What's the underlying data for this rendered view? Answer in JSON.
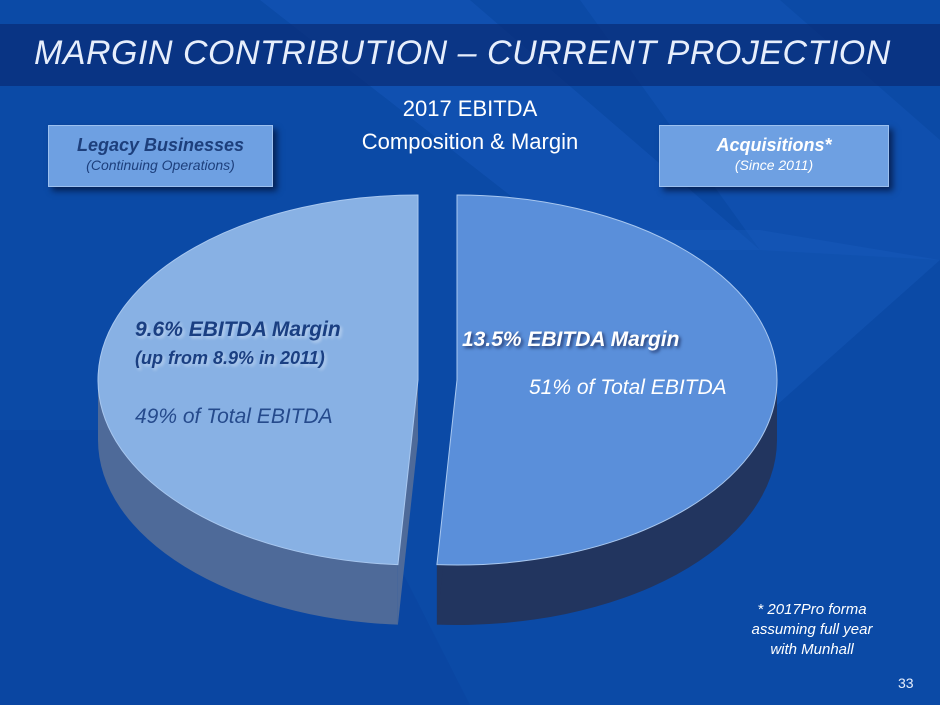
{
  "slide": {
    "title": "MARGIN CONTRIBUTION – CURRENT PROJECTION",
    "page_number": "33",
    "footnote_lines": [
      "* 2017Pro forma",
      "assuming full year",
      "with Munhall"
    ]
  },
  "boxes": {
    "legacy": {
      "title": "Legacy Businesses",
      "subtitle": "(Continuing Operations)"
    },
    "acquisitions": {
      "title": "Acquisitions*",
      "subtitle": "(Since 2011)"
    }
  },
  "chart_data": {
    "type": "pie",
    "title_lines": [
      "2017 EBITDA",
      "Composition & Margin"
    ],
    "slices": [
      {
        "name": "Acquisitions*",
        "value": 51,
        "color": "#5a8fda",
        "side": "#22355f",
        "margin_label": "13.5% EBITDA Margin",
        "share_label": "51% of Total EBITDA"
      },
      {
        "name": "Legacy Businesses",
        "value": 49,
        "color": "#88b1e4",
        "side": "#4e6a99",
        "margin_label": "9.6% EBITDA Margin",
        "note_label": "(up from 8.9% in 2011)",
        "share_label": "49% of Total EBITDA"
      }
    ]
  }
}
